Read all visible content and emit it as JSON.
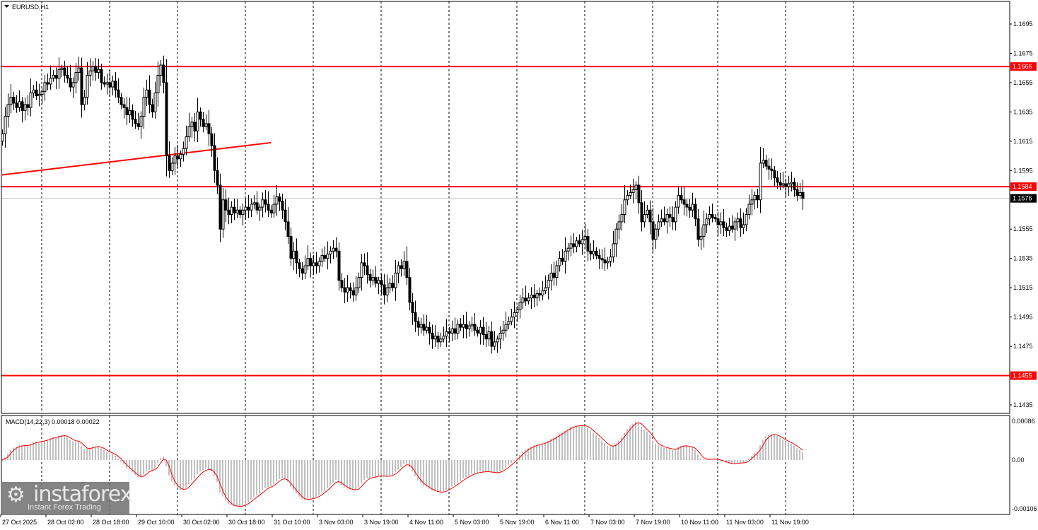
{
  "chart_data": {
    "type": "candlestick",
    "title": "EURUSD,H1",
    "symbol": "EURUSD",
    "timeframe": "H1",
    "ylim": [
      1.1425,
      1.171
    ],
    "y_ticks": [
      "1.1695",
      "1.1675",
      "1.1655",
      "1.1635",
      "1.1615",
      "1.1595",
      "1.1555",
      "1.1535",
      "1.1515",
      "1.1495",
      "1.1475",
      "1.1435"
    ],
    "x_tick_labels": [
      "27 Oct 2025",
      "28 Oct 02:00",
      "28 Oct 18:00",
      "29 Oct 10:00",
      "30 Oct 02:00",
      "30 Oct 18:00",
      "31 Oct 10:00",
      "3 Nov 03:00",
      "3 Nov 19:00",
      "4 Nov 11:00",
      "5 Nov 03:00",
      "5 Nov 19:00",
      "6 Nov 11:00",
      "7 Nov 03:00",
      "7 Nov 19:00",
      "10 Nov 11:00",
      "11 Nov 03:00",
      "11 Nov 19:00"
    ],
    "grid": "vertical dashed, daily",
    "close": [
      1.162,
      1.1632,
      1.164,
      1.1645,
      1.1641,
      1.1638,
      1.1642,
      1.1636,
      1.164,
      1.1638,
      1.1648,
      1.165,
      1.1646,
      1.1647,
      1.1649,
      1.1655,
      1.1654,
      1.1658,
      1.166,
      1.1658,
      1.1664,
      1.1665,
      1.166,
      1.1658,
      1.1652,
      1.1655,
      1.1662,
      1.1665,
      1.164,
      1.1645,
      1.166,
      1.1663,
      1.1666,
      1.1662,
      1.1664,
      1.1655,
      1.1654,
      1.1655,
      1.1652,
      1.1656,
      1.165,
      1.1645,
      1.164,
      1.1638,
      1.1633,
      1.1636,
      1.163,
      1.1627,
      1.1625,
      1.1632,
      1.1645,
      1.165,
      1.164,
      1.1635,
      1.1648,
      1.166,
      1.1667,
      1.1655,
      1.1605,
      1.1595,
      1.16,
      1.1605,
      1.1603,
      1.1606,
      1.161,
      1.1618,
      1.1625,
      1.1628,
      1.1622,
      1.1635,
      1.163,
      1.1625,
      1.1627,
      1.162,
      1.1612,
      1.1595,
      1.1585,
      1.1555,
      1.1575,
      1.1568,
      1.1565,
      1.157,
      1.1566,
      1.1568,
      1.1565,
      1.1568,
      1.157,
      1.1568,
      1.1572,
      1.1573,
      1.1568,
      1.157,
      1.1575,
      1.1572,
      1.1568,
      1.1566,
      1.1572,
      1.1577,
      1.1574,
      1.1568,
      1.156,
      1.155,
      1.1535,
      1.154,
      1.1532,
      1.1528,
      1.1525,
      1.153,
      1.1535,
      1.153,
      1.1532,
      1.153,
      1.1533,
      1.1537,
      1.1535,
      1.1538,
      1.154,
      1.1542,
      1.154,
      1.152,
      1.1515,
      1.1512,
      1.1515,
      1.1513,
      1.151,
      1.1515,
      1.1522,
      1.1532,
      1.153,
      1.1524,
      1.152,
      1.1522,
      1.1518,
      1.152,
      1.1517,
      1.151,
      1.1515,
      1.1518,
      1.1515,
      1.1525,
      1.153,
      1.1528,
      1.1533,
      1.1522,
      1.1505,
      1.1498,
      1.1492,
      1.1488,
      1.149,
      1.1486,
      1.1488,
      1.1484,
      1.148,
      1.1482,
      1.1478,
      1.148,
      1.1482,
      1.1485,
      1.1484,
      1.1487,
      1.1484,
      1.149,
      1.1488,
      1.149,
      1.1487,
      1.1489,
      1.149,
      1.1486,
      1.1484,
      1.1488,
      1.1483,
      1.148,
      1.1485,
      1.1475,
      1.1478,
      1.148,
      1.1484,
      1.1486,
      1.149,
      1.1492,
      1.1495,
      1.1498,
      1.15,
      1.1505,
      1.1508,
      1.1506,
      1.1508,
      1.151,
      1.1508,
      1.1511,
      1.151,
      1.1513,
      1.1515,
      1.152,
      1.1525,
      1.1522,
      1.153,
      1.1535,
      1.1533,
      1.154,
      1.1542,
      1.1545,
      1.1543,
      1.1547,
      1.1545,
      1.1548,
      1.155,
      1.154,
      1.1538,
      1.154,
      1.1537,
      1.1535,
      1.1534,
      1.1532,
      1.1533,
      1.1536,
      1.1545,
      1.1555,
      1.156,
      1.1565,
      1.1575,
      1.1578,
      1.158,
      1.1582,
      1.1585,
      1.1573,
      1.156,
      1.1565,
      1.1568,
      1.156,
      1.1548,
      1.1555,
      1.156,
      1.1562,
      1.156,
      1.1565,
      1.1563,
      1.156,
      1.157,
      1.1578,
      1.1575,
      1.1572,
      1.157,
      1.1568,
      1.1572,
      1.1562,
      1.1548,
      1.155,
      1.1558,
      1.1562,
      1.1565,
      1.1563,
      1.1562,
      1.1558,
      1.156,
      1.1556,
      1.1554,
      1.1557,
      1.1555,
      1.156,
      1.1562,
      1.1556,
      1.1558,
      1.1565,
      1.1572,
      1.1575,
      1.1578,
      1.1575,
      1.16,
      1.1602,
      1.1598,
      1.1596,
      1.1595,
      1.159,
      1.1587,
      1.1585,
      1.1586,
      1.1584,
      1.1586,
      1.1587,
      1.1582,
      1.1578,
      1.158,
      1.1576
    ],
    "levels": [
      {
        "price": 1.1666,
        "label": "1.1666",
        "color": "#ff0000"
      },
      {
        "price": 1.1584,
        "label": "1.1584",
        "color": "#ff0000"
      },
      {
        "price": 1.1455,
        "label": "1.1455",
        "color": "#ff0000"
      }
    ],
    "current_price": {
      "price": 1.1576,
      "label": "1.1576",
      "color": "#000000"
    },
    "trendline": {
      "from": {
        "bar": 0,
        "price": 1.1592
      },
      "to": {
        "bar": 95,
        "price": 1.1614
      },
      "color": "#ff0000"
    },
    "colors": {
      "bull_body": "#ffffff",
      "bear_body": "#000000",
      "outline": "#000000",
      "level": "#ff0000",
      "macd_hist": "#c0c0c0",
      "macd_signal": "#ff0000"
    },
    "macd": {
      "label": "MACD(14,22,3) 0.00018 0.00022",
      "fast": 14,
      "slow": 22,
      "signal": 3,
      "ylim": [
        -0.00106,
        0.00086
      ],
      "y_ticks": [
        "0.00086",
        "0.00",
        "-0.00106"
      ]
    }
  },
  "logo": {
    "brand": "instaforex",
    "tagline": "Instant Forex Trading"
  }
}
